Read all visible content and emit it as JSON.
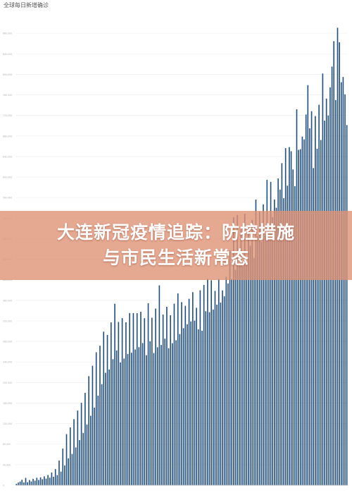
{
  "chart_data": {
    "type": "bar",
    "title": "全球每日新增确诊",
    "subtitle": "",
    "xlabel": "",
    "ylabel": "",
    "grid": true,
    "legend": "none",
    "color": "#24507d",
    "ylim": [
      0,
      920000
    ],
    "yticks": [
      0,
      40000,
      80000,
      120000,
      160000,
      200000,
      240000,
      280000,
      320000,
      360000,
      400000,
      440000,
      480000,
      520000,
      560000,
      600000,
      640000,
      680000,
      720000,
      760000,
      800000,
      840000,
      880000
    ],
    "values": [
      2900,
      5300,
      7200,
      10700,
      5400,
      14300,
      5900,
      10200,
      7300,
      12400,
      8900,
      14600,
      10300,
      15400,
      11700,
      17300,
      12900,
      19800,
      14800,
      24700,
      16600,
      31400,
      19700,
      48100,
      26500,
      71300,
      38600,
      99500,
      52400,
      112500,
      60900,
      128600,
      73600,
      145400,
      87900,
      160400,
      101800,
      179900,
      118300,
      212400,
      135300,
      232700,
      151100,
      258900,
      174500,
      271700,
      196800,
      299000,
      218900,
      292600,
      225400,
      317100,
      245400,
      353300,
      262500,
      317900,
      239100,
      325300,
      246600,
      317300,
      255600,
      335200,
      258000,
      335200,
      264400,
      335000,
      268800,
      337700,
      276800,
      325200,
      253200,
      354300,
      280400,
      326100,
      257300,
      343900,
      268600,
      389100,
      273100,
      332300,
      285300,
      347400,
      266800,
      331000,
      276500,
      353500,
      282200,
      373500,
      294300,
      356500,
      305800,
      349300,
      313500,
      363000,
      318900,
      375900,
      320400,
      345500,
      303600,
      379500,
      300800,
      389900,
      338800,
      401600,
      336900,
      399100,
      342000,
      378400,
      351600,
      401600,
      355600,
      379400,
      367700,
      405900,
      392900,
      457300,
      402000,
      521700,
      419400,
      526000,
      428100,
      497000,
      426200,
      528500,
      431800,
      501100,
      466300,
      516800,
      442600,
      556100,
      484600,
      533100,
      473900,
      546800,
      488400,
      594700,
      499800,
      590700,
      521800,
      556300,
      540200,
      597300,
      575500,
      627100,
      558800,
      656300,
      583200,
      658300,
      650300,
      614700,
      582200,
      731800,
      652900,
      654200,
      678800,
      673300,
      721700,
      779000,
      695000,
      728200,
      617500,
      718800,
      655000,
      740800,
      672100,
      801600,
      709800,
      752800,
      719900,
      774600,
      815100,
      864500,
      750000,
      890700,
      862300,
      784600,
      794900,
      761100,
      701300
    ]
  }
}
